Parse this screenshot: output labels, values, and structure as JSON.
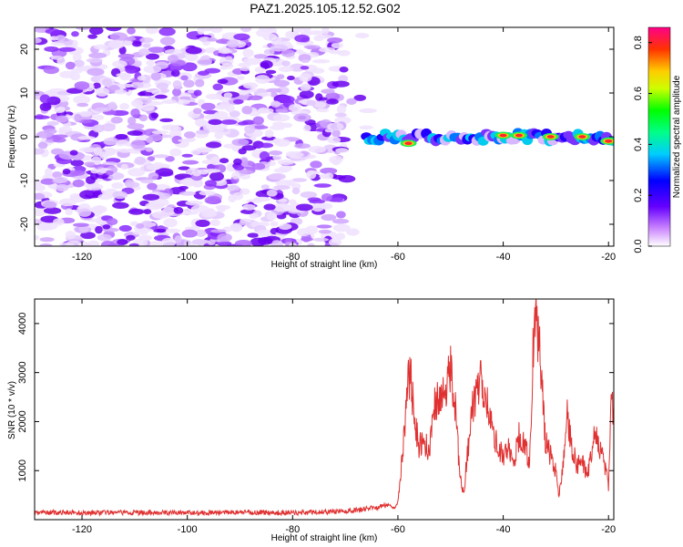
{
  "title": "PAZ1.2025.105.12.52.G02",
  "chart_data": [
    {
      "type": "heatmap",
      "xlabel": "Height of straight line (km)",
      "ylabel": "Frequency (Hz)",
      "xlim": [
        -129,
        -19
      ],
      "ylim": [
        -25,
        25
      ],
      "xticks": [
        -120,
        -100,
        -80,
        -60,
        -40,
        -20
      ],
      "yticks": [
        -20,
        -10,
        0,
        10,
        20
      ],
      "colorbar": {
        "label": "Normalized spectral amplitude",
        "range": [
          0,
          0.86
        ],
        "ticks": [
          0.0,
          0.2,
          0.4,
          0.6,
          0.8
        ]
      },
      "regions": [
        {
          "x": [
            -129,
            -70
          ],
          "y": [
            -25,
            25
          ],
          "amplitude": 0.08
        },
        {
          "x": [
            -66,
            -19
          ],
          "y": [
            -2,
            2
          ],
          "amplitude": 0.5,
          "peaks": [
            {
              "x": -58,
              "y": -1.5,
              "amplitude": 0.86
            },
            {
              "x": -40,
              "y": 0.3,
              "amplitude": 0.86
            },
            {
              "x": -37,
              "y": 0.3,
              "amplitude": 0.86
            },
            {
              "x": -31,
              "y": 0.0,
              "amplitude": 0.86
            },
            {
              "x": -25,
              "y": 0.0,
              "amplitude": 0.86
            },
            {
              "x": -20,
              "y": -1.0,
              "amplitude": 0.86
            }
          ]
        }
      ],
      "grid": false
    },
    {
      "type": "line",
      "xlabel": "Height of straight line (km)",
      "ylabel": "SNR (10 * v/v)",
      "xlim": [
        -129,
        -19
      ],
      "ylim": [
        0,
        4500
      ],
      "xticks": [
        -120,
        -100,
        -80,
        -60,
        -40,
        -20
      ],
      "yticks": [
        1000,
        2000,
        3000,
        4000
      ],
      "color": "#e03030",
      "series": [
        {
          "x": [
            -129,
            -120,
            -110,
            -100,
            -90,
            -80,
            -70,
            -64,
            -62,
            -60.5,
            -60,
            -59,
            -58,
            -57.5,
            -57,
            -56,
            -55,
            -54,
            -53,
            -52,
            -51,
            -50.5,
            -50,
            -49,
            -48.5,
            -48,
            -47.5,
            -47,
            -46,
            -45,
            -44,
            -43,
            -42,
            -41,
            -40.5,
            -40,
            -39,
            -38,
            -37,
            -36,
            -35,
            -34.5,
            -34,
            -33,
            -32,
            -31,
            -30,
            -29.5,
            -29,
            -28.5,
            -28,
            -27,
            -26,
            -25,
            -24,
            -23,
            -22.5,
            -22,
            -21,
            -20,
            -19.5,
            -19
          ],
          "y": [
            150,
            140,
            145,
            140,
            150,
            140,
            170,
            250,
            300,
            250,
            400,
            1500,
            2800,
            3050,
            2100,
            1500,
            1600,
            1400,
            2300,
            2600,
            2400,
            2900,
            3150,
            2200,
            1300,
            800,
            500,
            1100,
            2200,
            2650,
            2850,
            2400,
            1800,
            1500,
            1400,
            1300,
            1500,
            1150,
            1700,
            1500,
            1200,
            2800,
            4400,
            3300,
            1600,
            1300,
            1000,
            500,
            800,
            1300,
            2300,
            1500,
            1100,
            1200,
            900,
            1600,
            1850,
            1500,
            1300,
            700,
            2450,
            2300
          ]
        }
      ],
      "grid": false
    }
  ]
}
